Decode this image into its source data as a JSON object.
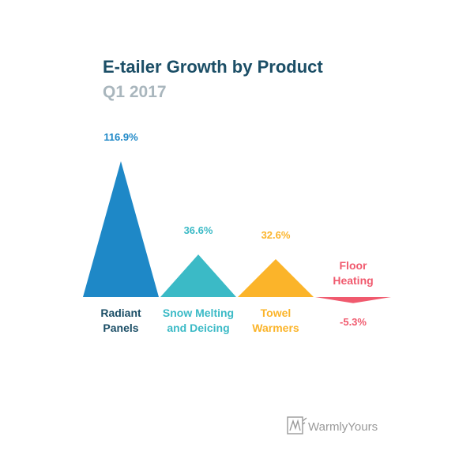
{
  "chart_data": {
    "type": "bar",
    "title": "E-tailer Growth by Product",
    "subtitle": "Q1 2017",
    "categories": [
      [
        "Radiant",
        "Panels"
      ],
      [
        "Snow Melting",
        "and Deicing"
      ],
      [
        "Towel",
        "Warmers"
      ],
      [
        "Floor",
        "Heating"
      ]
    ],
    "values": [
      116.9,
      36.6,
      32.6,
      -5.3
    ],
    "value_labels": [
      "116.9%",
      "36.6%",
      "32.6%",
      "-5.3%"
    ],
    "colors": [
      "#1e88c7",
      "#3bbac6",
      "#fbb42a",
      "#f05a6e"
    ],
    "marker": "triangle",
    "axis": "hidden",
    "grid": false
  },
  "colors": {
    "title": "#1b4e66",
    "subtitle": "#a9b6bd",
    "logo": "#9a9a9a"
  },
  "logo": {
    "text": "WarmlyYours",
    "icon": "warmlyyours-logo-icon"
  }
}
